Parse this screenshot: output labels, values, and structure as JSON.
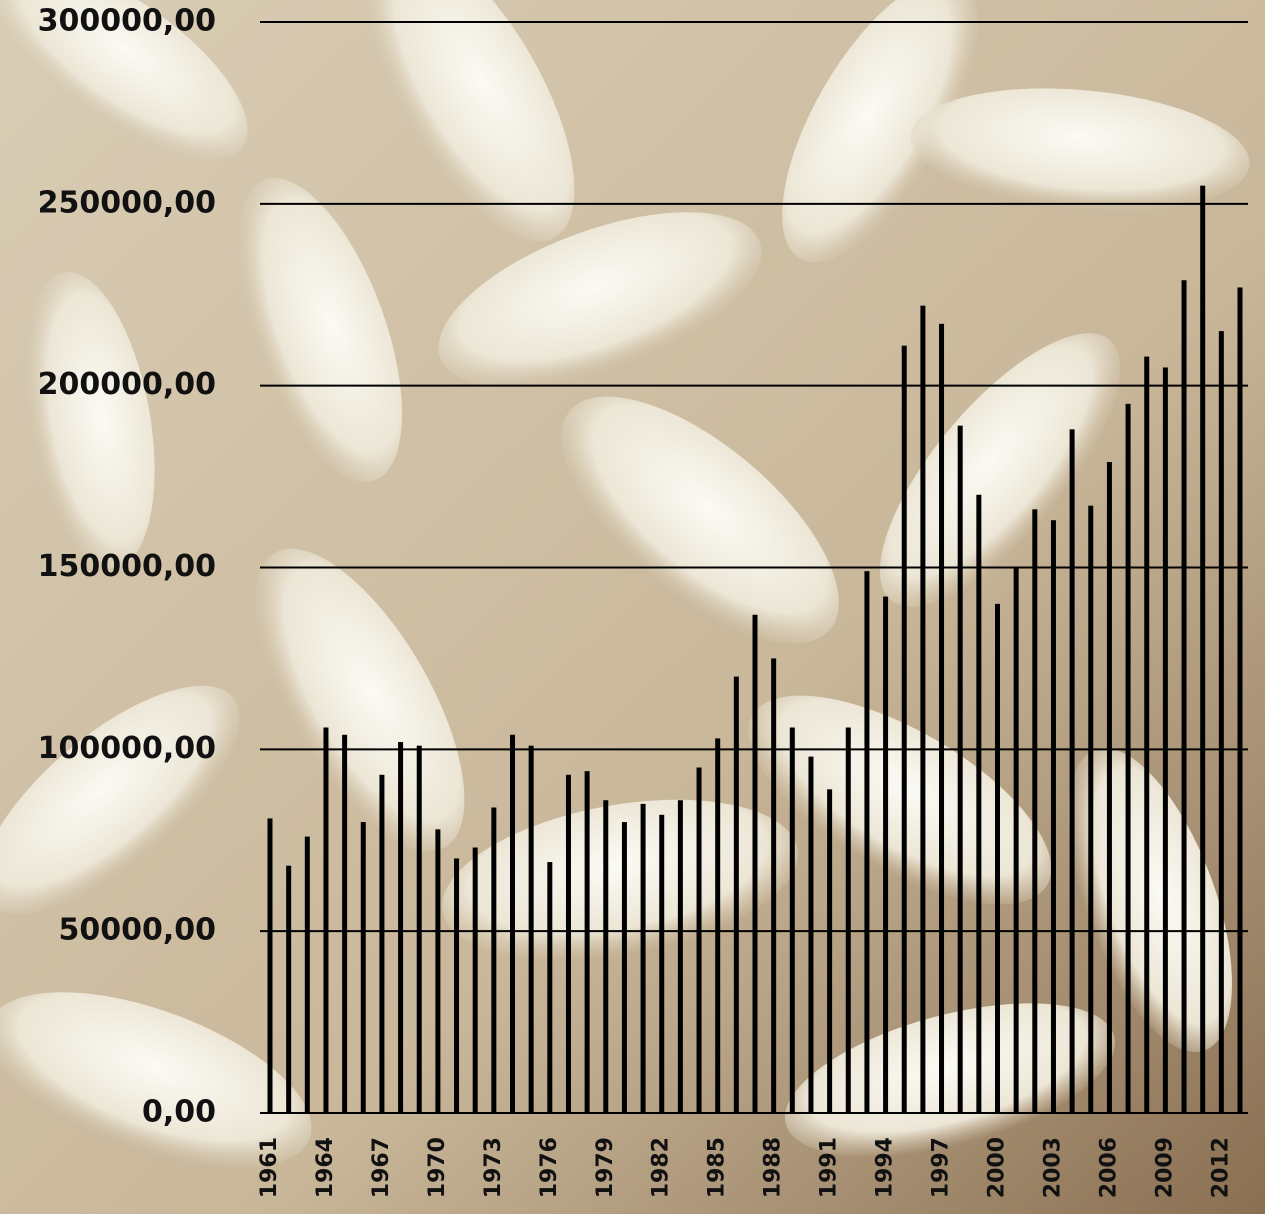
{
  "chart_data": {
    "type": "bar",
    "categories": [
      "1961",
      null,
      null,
      "1964",
      null,
      null,
      "1967",
      null,
      null,
      "1970",
      null,
      null,
      "1973",
      null,
      null,
      "1976",
      null,
      null,
      "1979",
      null,
      null,
      "1982",
      null,
      null,
      "1985",
      null,
      null,
      "1988",
      null,
      null,
      "1991",
      null,
      null,
      "1994",
      null,
      null,
      "1997",
      null,
      null,
      "2000",
      null,
      null,
      "2003",
      null,
      null,
      "2006",
      null,
      null,
      "2009",
      null,
      null,
      "2012",
      null
    ],
    "values": [
      81000,
      68000,
      76000,
      106000,
      104000,
      80000,
      93000,
      102000,
      101000,
      78000,
      70000,
      73000,
      84000,
      104000,
      101000,
      69000,
      93000,
      94000,
      86000,
      80000,
      85000,
      82000,
      86000,
      95000,
      103000,
      120000,
      137000,
      125000,
      106000,
      98000,
      89000,
      106000,
      149000,
      142000,
      211000,
      222000,
      217000,
      189000,
      170000,
      140000,
      150000,
      166000,
      163000,
      188000,
      167000,
      179000,
      195000,
      208000,
      205000,
      229000,
      255000,
      215000,
      227000
    ],
    "color": "#000000",
    "ylim": [
      0,
      300000
    ],
    "yticks": [
      {
        "value": 0,
        "label": "0,00"
      },
      {
        "value": 50000,
        "label": "50000,00"
      },
      {
        "value": 100000,
        "label": "100000,00"
      },
      {
        "value": 150000,
        "label": "150000,00"
      },
      {
        "value": 200000,
        "label": "200000,00"
      },
      {
        "value": 250000,
        "label": "250000,00"
      },
      {
        "value": 300000,
        "label": "300000,00"
      }
    ],
    "grid": true
  }
}
